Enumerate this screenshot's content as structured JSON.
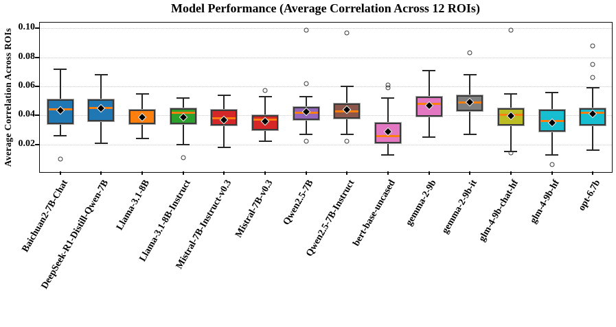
{
  "chart_data": {
    "type": "box",
    "title": "Model Performance (Average Correlation Across 12 ROIs)",
    "ylabel": "Average Correlation Across ROIs",
    "xlabel": "",
    "ylim": [
      0,
      0.104
    ],
    "yticks": [
      0.02,
      0.04,
      0.06,
      0.08,
      0.1
    ],
    "ytick_labels": [
      "0.02",
      "0.04",
      "0.06",
      "0.08",
      "0.10"
    ],
    "grid": "horizontal-dotted",
    "legend": "none",
    "median_color": "#ff7f0e",
    "mean_marker": "black-diamond-white-edge",
    "outlier_marker": "open-circle",
    "categories": [
      "Baichuan2-7B-Chat",
      "DeepSeek-R1-Distill-Qwen-7B",
      "Llama-3.1-8B",
      "Llama-3.1-8B-Instruct",
      "Mistral-7B-Instruct-v0.3",
      "Mistral-7B-v0.3",
      "Qwen2.5-7B",
      "Qwen2.5-7B-Instruct",
      "bert-base-uncased",
      "gemma-2-9b",
      "gemma-2-9b-it",
      "glm-4-9b-chat-hf",
      "glm-4-9b-hf",
      "opt-6.7b"
    ],
    "series": [
      {
        "label": "Baichuan2-7B-Chat",
        "color": "#1f77b4",
        "whisker_low": 0.026,
        "q1": 0.034,
        "median": 0.044,
        "q3": 0.051,
        "whisker_high": 0.072,
        "mean": 0.0435,
        "outliers": [
          0.01
        ]
      },
      {
        "label": "DeepSeek-R1-Distill-Qwen-7B",
        "color": "#1f77b4",
        "whisker_low": 0.021,
        "q1": 0.036,
        "median": 0.045,
        "q3": 0.051,
        "whisker_high": 0.068,
        "mean": 0.045,
        "outliers": []
      },
      {
        "label": "Llama-3.1-8B",
        "color": "#ff7f0e",
        "whisker_low": 0.024,
        "q1": 0.034,
        "median": 0.0395,
        "q3": 0.044,
        "whisker_high": 0.055,
        "mean": 0.039,
        "outliers": []
      },
      {
        "label": "Llama-3.1-8B-Instruct",
        "color": "#2ca02c",
        "whisker_low": 0.02,
        "q1": 0.034,
        "median": 0.042,
        "q3": 0.045,
        "whisker_high": 0.052,
        "mean": 0.039,
        "outliers": [
          0.011
        ]
      },
      {
        "label": "Mistral-7B-Instruct-v0.3",
        "color": "#d62728",
        "whisker_low": 0.018,
        "q1": 0.033,
        "median": 0.038,
        "q3": 0.044,
        "whisker_high": 0.054,
        "mean": 0.037,
        "outliers": []
      },
      {
        "label": "Mistral-7B-v0.3",
        "color": "#d62728",
        "whisker_low": 0.022,
        "q1": 0.03,
        "median": 0.037,
        "q3": 0.04,
        "whisker_high": 0.053,
        "mean": 0.036,
        "outliers": [
          0.057
        ]
      },
      {
        "label": "Qwen2.5-7B",
        "color": "#9467bd",
        "whisker_low": 0.027,
        "q1": 0.037,
        "median": 0.042,
        "q3": 0.046,
        "whisker_high": 0.053,
        "mean": 0.0425,
        "outliers": [
          0.099,
          0.062,
          0.022
        ]
      },
      {
        "label": "Qwen2.5-7B-Instruct",
        "color": "#8c564b",
        "whisker_low": 0.027,
        "q1": 0.038,
        "median": 0.043,
        "q3": 0.048,
        "whisker_high": 0.06,
        "mean": 0.044,
        "outliers": [
          0.097,
          0.022
        ]
      },
      {
        "label": "bert-base-uncased",
        "color": "#e377c2",
        "whisker_low": 0.013,
        "q1": 0.021,
        "median": 0.026,
        "q3": 0.035,
        "whisker_high": 0.052,
        "mean": 0.029,
        "outliers": [
          0.061,
          0.059
        ]
      },
      {
        "label": "gemma-2-9b",
        "color": "#e377c2",
        "whisker_low": 0.025,
        "q1": 0.039,
        "median": 0.048,
        "q3": 0.053,
        "whisker_high": 0.071,
        "mean": 0.047,
        "outliers": []
      },
      {
        "label": "gemma-2-9b-it",
        "color": "#7f7f7f",
        "whisker_low": 0.027,
        "q1": 0.043,
        "median": 0.049,
        "q3": 0.054,
        "whisker_high": 0.068,
        "mean": 0.049,
        "outliers": [
          0.083
        ]
      },
      {
        "label": "glm-4-9b-chat-hf",
        "color": "#bcbd22",
        "whisker_low": 0.015,
        "q1": 0.033,
        "median": 0.0405,
        "q3": 0.045,
        "whisker_high": 0.055,
        "mean": 0.0395,
        "outliers": [
          0.099,
          0.014
        ]
      },
      {
        "label": "glm-4-9b-hf",
        "color": "#17becf",
        "whisker_low": 0.013,
        "q1": 0.029,
        "median": 0.036,
        "q3": 0.044,
        "whisker_high": 0.056,
        "mean": 0.035,
        "outliers": [
          0.006
        ]
      },
      {
        "label": "opt-6.7b",
        "color": "#17becf",
        "whisker_low": 0.016,
        "q1": 0.033,
        "median": 0.042,
        "q3": 0.045,
        "whisker_high": 0.059,
        "mean": 0.041,
        "outliers": [
          0.088,
          0.075,
          0.066
        ]
      }
    ]
  }
}
